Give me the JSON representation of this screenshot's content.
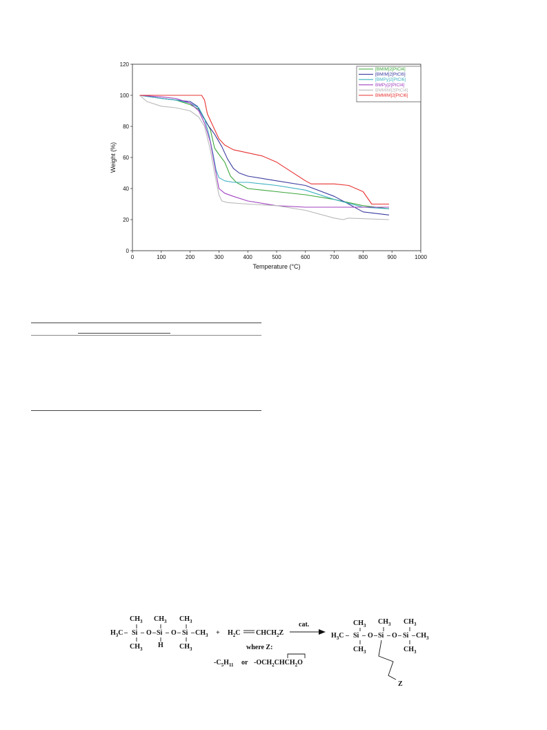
{
  "chart_data": {
    "type": "line",
    "xlabel": "Temperature (°C)",
    "ylabel": "Weight (%)",
    "xlim": [
      0,
      1000
    ],
    "ylim": [
      0,
      120
    ],
    "xticks": [
      0,
      100,
      200,
      300,
      400,
      500,
      600,
      700,
      800,
      900,
      1000
    ],
    "yticks": [
      0,
      20,
      40,
      60,
      80,
      100,
      120
    ],
    "grid": false,
    "legend_position": "top-right",
    "series": [
      {
        "name": "[BMIM]2[PtCl4]",
        "color": "#3aa53a",
        "x": [
          25,
          100,
          150,
          200,
          230,
          250,
          270,
          285,
          300,
          320,
          340,
          360,
          400,
          500,
          600,
          700,
          800,
          890
        ],
        "y": [
          100,
          98,
          97,
          94,
          91,
          85,
          78,
          66,
          62,
          57,
          48,
          44,
          40,
          38,
          36,
          33,
          29,
          27
        ]
      },
      {
        "name": "[BMIM]2[PtCl6]",
        "color": "#3a3aa0",
        "x": [
          25,
          100,
          150,
          200,
          225,
          245,
          265,
          285,
          310,
          330,
          350,
          370,
          400,
          500,
          600,
          700,
          800,
          890
        ],
        "y": [
          100,
          98,
          97,
          96,
          93,
          86,
          80,
          75,
          67,
          59,
          53,
          50,
          48,
          45,
          42,
          35,
          25,
          23
        ]
      },
      {
        "name": "[BMPy]2[PtCl6]",
        "color": "#3ab0c0",
        "x": [
          25,
          100,
          150,
          200,
          230,
          250,
          265,
          280,
          290,
          300,
          320,
          350,
          400,
          500,
          600,
          700,
          800,
          890
        ],
        "y": [
          100,
          98,
          97,
          95,
          92,
          85,
          75,
          62,
          52,
          47,
          45,
          44,
          44,
          42,
          39,
          33,
          28,
          27
        ]
      },
      {
        "name": "BMPy]2[PtCl4]",
        "color": "#a040c0",
        "x": [
          25,
          100,
          150,
          200,
          230,
          250,
          270,
          285,
          300,
          320,
          350,
          400,
          500,
          600,
          700,
          800,
          890
        ],
        "y": [
          100,
          99,
          98,
          95,
          90,
          82,
          70,
          55,
          40,
          37,
          35,
          32,
          29,
          28,
          28,
          28,
          28
        ]
      },
      {
        "name": "BMMIM]2[PtCl4]",
        "color": "#b8b8b8",
        "x": [
          25,
          50,
          100,
          150,
          200,
          230,
          250,
          270,
          285,
          300,
          310,
          330,
          400,
          500,
          600,
          700,
          730,
          750,
          890
        ],
        "y": [
          100,
          96,
          93,
          92,
          90,
          86,
          80,
          65,
          50,
          36,
          32,
          31,
          30,
          29,
          26,
          21,
          20,
          21,
          20
        ]
      },
      {
        "name": "BMMIM]2[PtCl6]",
        "color": "#e83030",
        "x": [
          25,
          100,
          200,
          240,
          250,
          260,
          280,
          300,
          320,
          350,
          400,
          450,
          500,
          550,
          600,
          620,
          700,
          750,
          800,
          830,
          890
        ],
        "y": [
          100,
          100,
          100,
          100,
          97,
          88,
          80,
          72,
          68,
          65,
          63,
          61,
          57,
          51,
          45,
          43,
          43,
          42,
          38,
          30,
          30
        ]
      }
    ]
  },
  "scheme": {
    "ch3": "CH",
    "three": "3",
    "h3c": "H",
    "three_c": "3",
    "c": "C",
    "si": "Si",
    "o": "O",
    "h": "H",
    "plus": "+",
    "h2c": "H",
    "two": "2",
    "alkene_c": "C",
    "chch2z_a": "CHCH",
    "chch2z_b": "Z",
    "cat": "cat.",
    "where": "where Z:",
    "opt1_a": "-C",
    "opt1_sub": "5",
    "opt1_b": "H",
    "opt1_sub2": "11",
    "or": "or",
    "opt2_a": "-OCH",
    "opt2_b": "CHCH",
    "opt2_c": "O",
    "z": "Z"
  }
}
